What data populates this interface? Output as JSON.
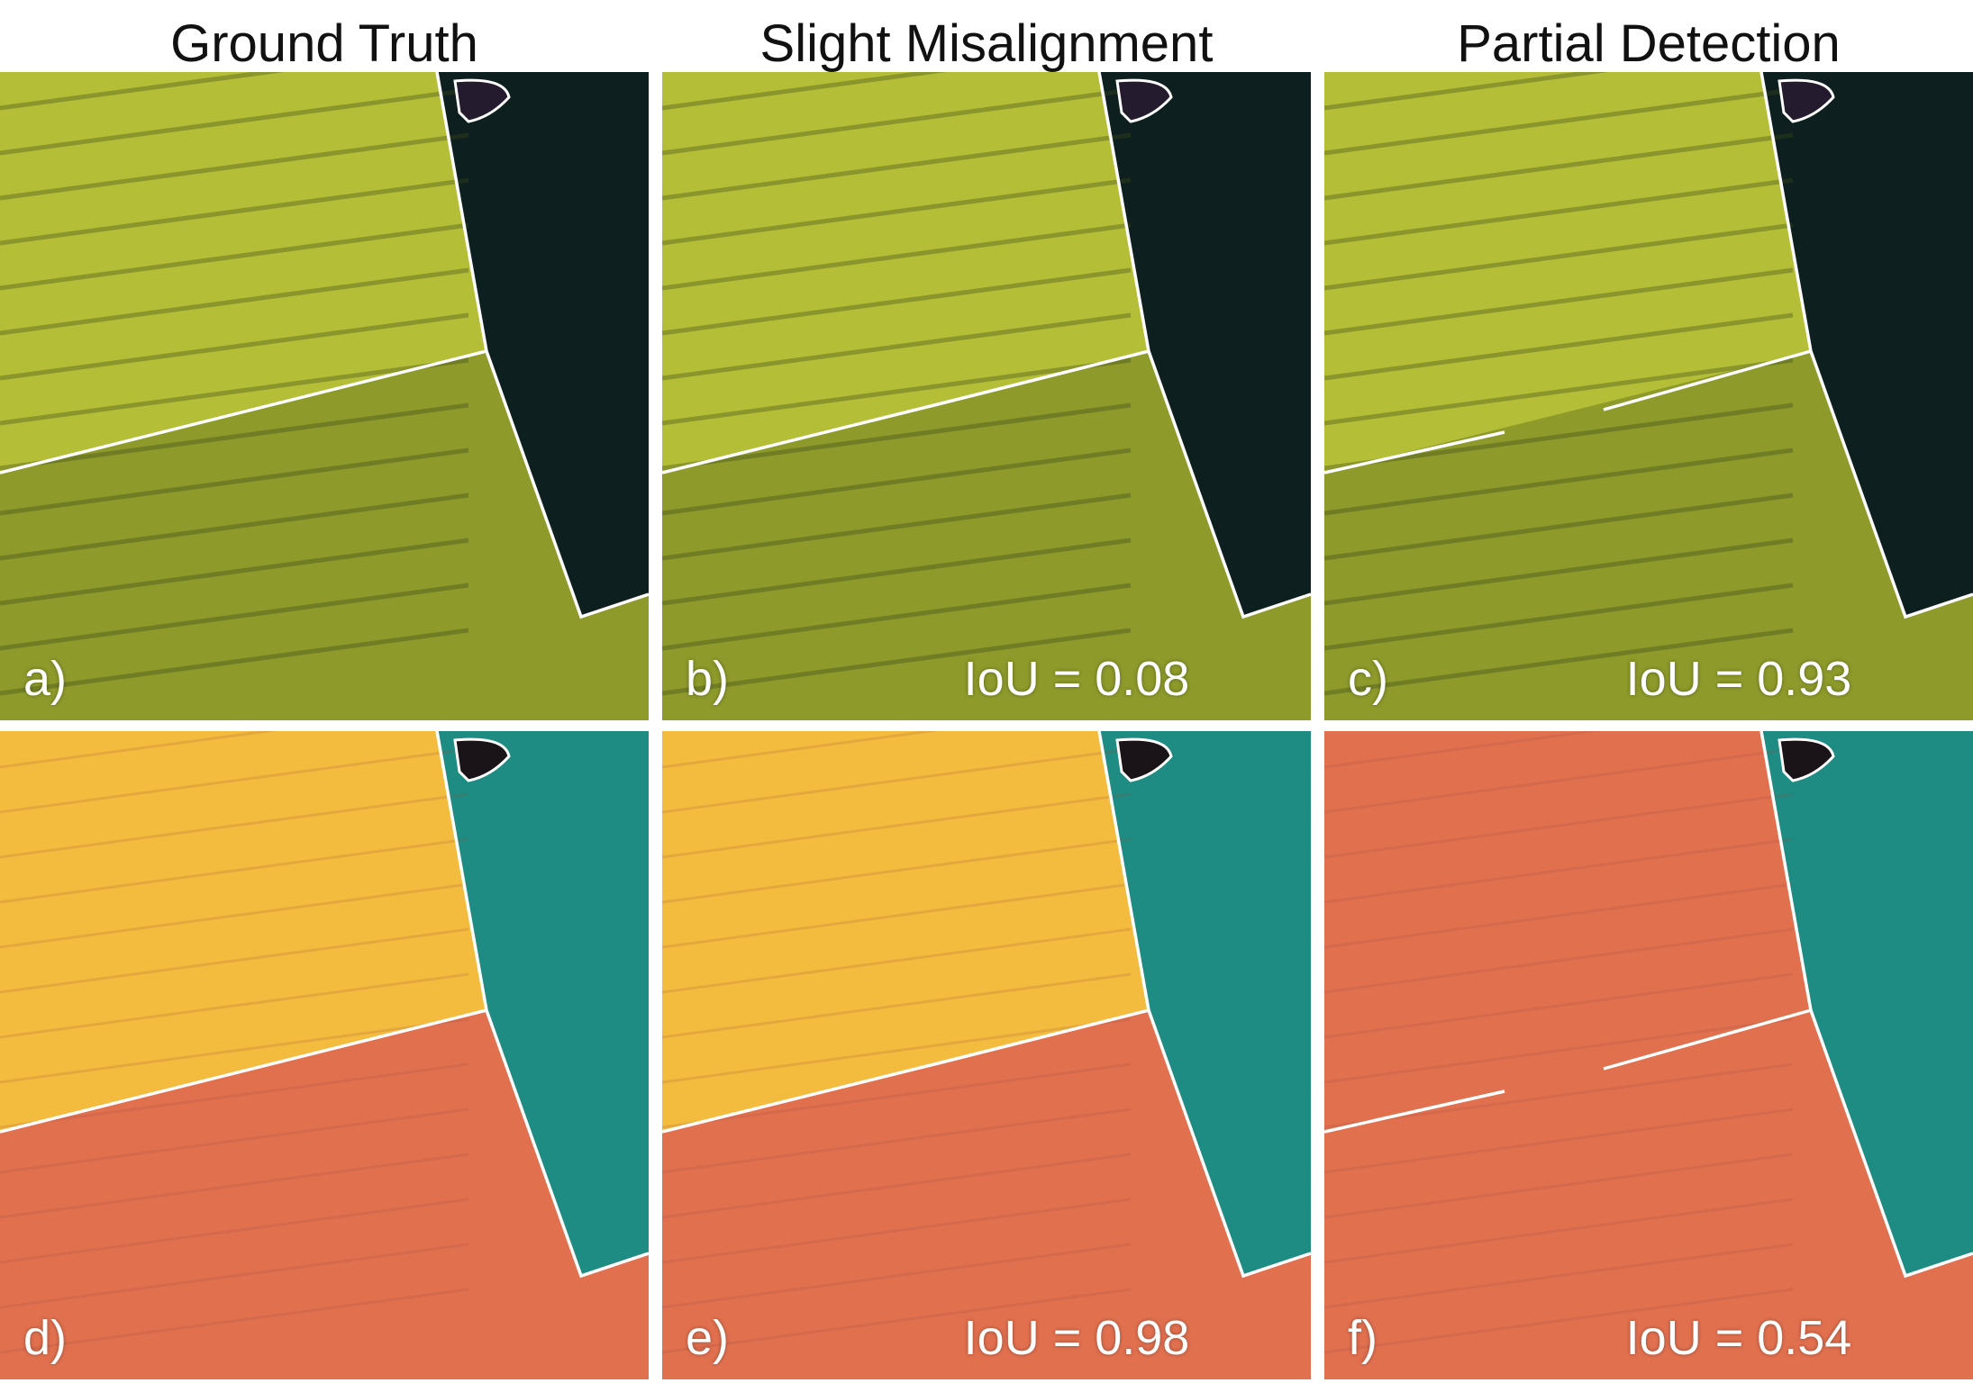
{
  "titles": [
    "Ground Truth",
    "Slight Misalignment",
    "Partial Detection"
  ],
  "panels": [
    {
      "label": "a)",
      "iou": "",
      "style": "photo",
      "boundary": "truth"
    },
    {
      "label": "b)",
      "iou": "IoU = 0.08",
      "style": "photo",
      "boundary": "misaligned"
    },
    {
      "label": "c)",
      "iou": "IoU = 0.93",
      "style": "photo",
      "boundary": "partial"
    },
    {
      "label": "d)",
      "iou": "",
      "style": "segment",
      "boundary": "truth"
    },
    {
      "label": "e)",
      "iou": "IoU = 0.98",
      "style": "segment",
      "boundary": "misaligned"
    },
    {
      "label": "f)",
      "iou": "IoU = 0.54",
      "style": "segment",
      "boundary": "partial"
    }
  ],
  "colors": {
    "field_top_photo": "#b4be36",
    "field_bottom_photo": "#8e9a2a",
    "field_right_photo": "#0d1f1e",
    "field_top_segment": "#f4bc3e",
    "field_bottom_segment": "#e1704f",
    "field_right_segment": "#1e8c82",
    "boundary": "#ffffff"
  }
}
